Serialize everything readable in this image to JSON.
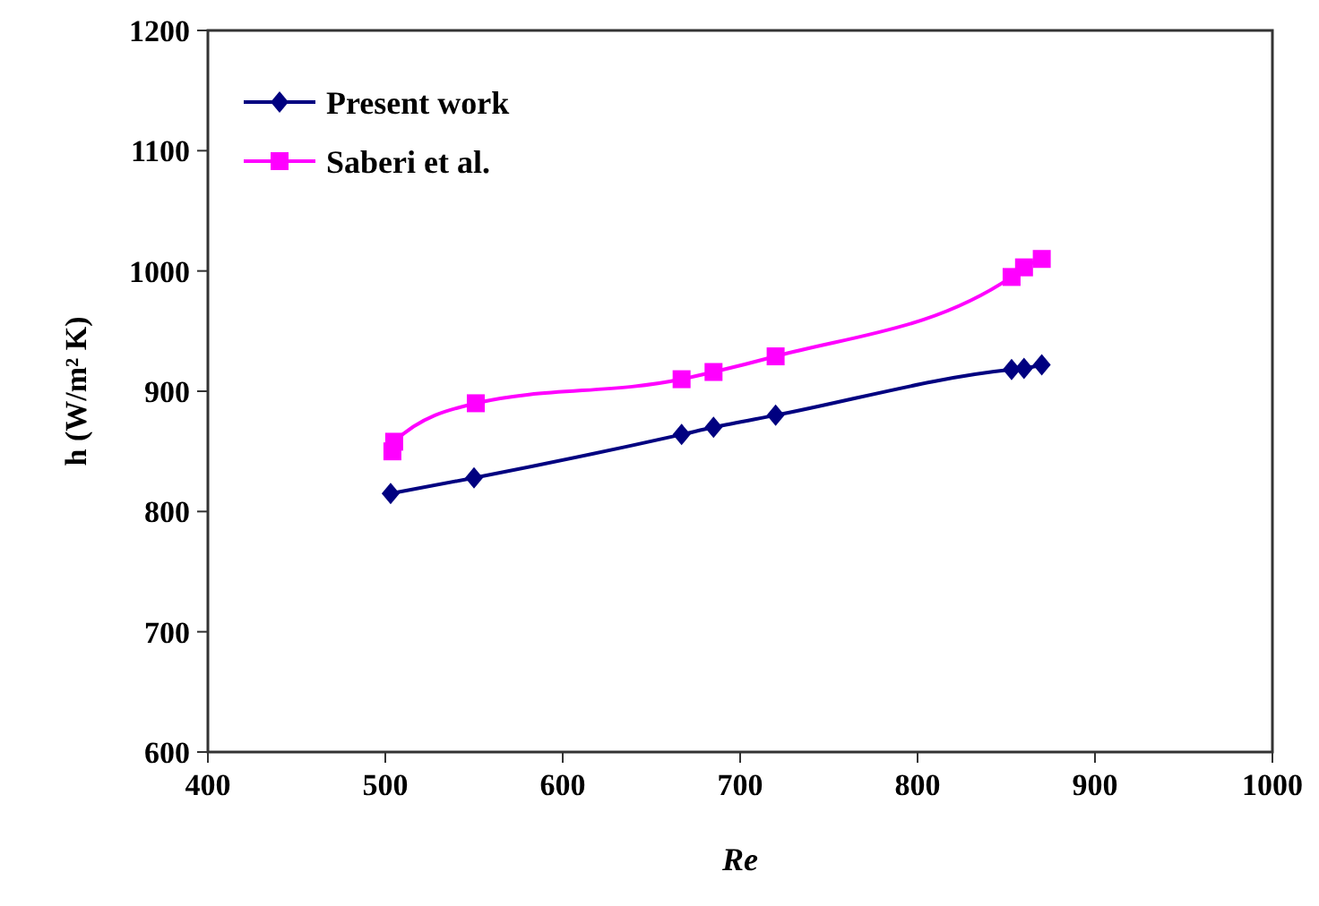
{
  "chart_data": {
    "type": "line",
    "xlabel": "Re",
    "ylabel": "h (W/m² K)",
    "xlim": [
      400,
      1000
    ],
    "xticks": [
      400,
      500,
      600,
      700,
      800,
      900,
      1000
    ],
    "ylim": [
      600,
      1200
    ],
    "yticks": [
      600,
      700,
      800,
      900,
      1000,
      1100,
      1200
    ],
    "grid": false,
    "legend": "top left",
    "series": [
      {
        "name": "Present work",
        "color": "#000080",
        "marker": "diamond",
        "x": [
          503,
          550,
          667,
          685,
          720,
          853,
          860,
          870
        ],
        "values": [
          815,
          828,
          864,
          870,
          880,
          918,
          919,
          922
        ]
      },
      {
        "name": "Saberi et al.",
        "color": "#ff00ff",
        "marker": "square",
        "x": [
          504,
          505,
          551,
          667,
          685,
          720,
          853,
          860,
          870
        ],
        "values": [
          850,
          858,
          890,
          910,
          916,
          929,
          995,
          1003,
          1010
        ]
      }
    ]
  }
}
